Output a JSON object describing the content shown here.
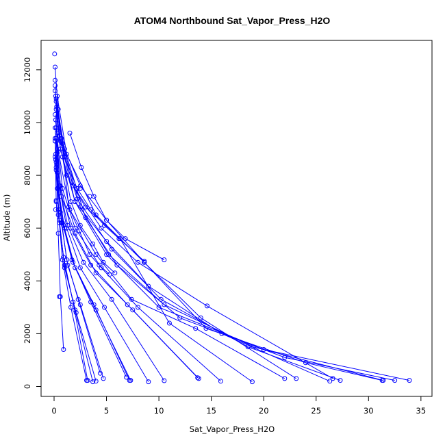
{
  "chart_data": {
    "type": "line",
    "title": "ATOM4 Northbound Sat_Vapor_Press_H2O",
    "xlabel": "Sat_Vapor_Press_H2O",
    "ylabel": "Altitude (m)",
    "xlim": [
      0,
      35
    ],
    "ylim": [
      0,
      12600
    ],
    "x_ticks": [
      0,
      5,
      10,
      15,
      20,
      25,
      30,
      35
    ],
    "y_ticks": [
      0,
      2000,
      4000,
      6000,
      8000,
      10000,
      12000
    ],
    "x_tick_labels": [
      "0",
      "5",
      "10",
      "15",
      "20",
      "25",
      "30",
      "35"
    ],
    "y_tick_labels": [
      "0",
      "2000",
      "4000",
      "6000",
      "8000",
      "10000",
      "12000"
    ],
    "grid": false,
    "legend": "none",
    "color": "#0000ff",
    "series": [
      {
        "x": [
          33.9,
          20.0,
          10.0,
          5.0,
          2.0,
          0.5,
          0.15
        ],
        "y": [
          230,
          1400,
          3000,
          5000,
          7000,
          9500,
          11000
        ]
      },
      {
        "x": [
          32.5,
          22.0,
          12.0,
          6.0,
          3.0,
          1.0,
          0.2
        ],
        "y": [
          230,
          1100,
          2600,
          4600,
          6400,
          9000,
          10800
        ]
      },
      {
        "x": [
          31.4,
          19.0,
          10.5,
          5.2,
          2.5,
          0.8,
          0.25
        ],
        "y": [
          230,
          1500,
          3100,
          5000,
          6800,
          9200,
          10600
        ]
      },
      {
        "x": [
          31.3,
          24.0,
          14.5,
          8.6,
          4.0,
          1.2,
          0.3
        ],
        "y": [
          230,
          900,
          2200,
          4700,
          6500,
          8800,
          11000
        ]
      },
      {
        "x": [
          27.3,
          18.5,
          10.2,
          5.5,
          2.2,
          0.6,
          0.1
        ],
        "y": [
          230,
          1500,
          3300,
          5200,
          7100,
          9300,
          12100
        ]
      },
      {
        "x": [
          26.6,
          14.6,
          8.0,
          4.5,
          1.8,
          0.5,
          0.1
        ],
        "y": [
          300,
          3050,
          4700,
          6000,
          7600,
          9500,
          11200
        ]
      },
      {
        "x": [
          26.3,
          16.0,
          9.0,
          5.0,
          2.0,
          0.6,
          0.2
        ],
        "y": [
          200,
          2000,
          3800,
          5500,
          7000,
          9000,
          10500
        ]
      },
      {
        "x": [
          23.1,
          14.0,
          8.6,
          5.0,
          2.5,
          0.8,
          0.2
        ],
        "y": [
          300,
          2600,
          4700,
          6300,
          7600,
          9200,
          10900
        ]
      },
      {
        "x": [
          22.0,
          13.5,
          7.4,
          4.0,
          1.5,
          0.4,
          0.1
        ],
        "y": [
          300,
          2200,
          3300,
          5000,
          6700,
          8900,
          10300
        ]
      },
      {
        "x": [
          18.9,
          11.0,
          6.3,
          3.0,
          1.2,
          0.3,
          0.1
        ],
        "y": [
          180,
          2400,
          5600,
          6800,
          8000,
          9600,
          11400
        ]
      },
      {
        "x": [
          15.9,
          8.0,
          4.5,
          2.0,
          0.8,
          0.2
        ],
        "y": [
          200,
          3000,
          4500,
          6000,
          7500,
          9800
        ]
      },
      {
        "x": [
          13.8,
          7.5,
          4.0,
          2.0,
          0.7,
          0.2
        ],
        "y": [
          300,
          2900,
          4300,
          5800,
          7200,
          9400
        ]
      },
      {
        "x": [
          13.7,
          7.0,
          3.5,
          1.6,
          0.6,
          0.15
        ],
        "y": [
          330,
          3100,
          4600,
          6000,
          7600,
          10100
        ]
      },
      {
        "x": [
          10.5,
          5.5,
          2.8,
          1.3,
          0.5,
          0.1
        ],
        "y": [
          220,
          3300,
          4700,
          6100,
          7600,
          9800
        ]
      },
      {
        "x": [
          9.0,
          4.8,
          2.5,
          1.2,
          0.5,
          0.1
        ],
        "y": [
          180,
          3000,
          4500,
          6000,
          7600,
          9300
        ]
      },
      {
        "x": [
          7.3,
          4.0,
          2.0,
          1.0,
          0.4,
          0.1
        ],
        "y": [
          230,
          2900,
          4500,
          6000,
          7500,
          9300
        ]
      },
      {
        "x": [
          7.2,
          3.8,
          1.8,
          0.9,
          0.3,
          0.1
        ],
        "y": [
          230,
          3100,
          4700,
          6100,
          7500,
          8700
        ]
      },
      {
        "x": [
          6.9,
          3.5,
          1.7,
          0.8,
          0.3
        ],
        "y": [
          350,
          3200,
          4800,
          6200,
          8100
        ]
      },
      {
        "x": [
          4.7,
          2.5,
          1.3,
          0.7,
          0.25
        ],
        "y": [
          300,
          3100,
          4600,
          6200,
          8400
        ]
      },
      {
        "x": [
          4.4,
          2.3,
          1.2,
          0.6,
          0.2
        ],
        "y": [
          500,
          3300,
          4800,
          6600,
          8300
        ]
      },
      {
        "x": [
          4.0,
          2.1,
          1.0,
          0.5,
          0.2
        ],
        "y": [
          200,
          2800,
          4500,
          6300,
          8200
        ]
      },
      {
        "x": [
          3.7,
          2.0,
          1.0,
          0.5,
          0.2
        ],
        "y": [
          180,
          2900,
          4600,
          6200,
          8500
        ]
      },
      {
        "x": [
          3.2,
          1.8,
          0.9,
          0.4,
          0.15
        ],
        "y": [
          230,
          3200,
          4900,
          6500,
          8600
        ]
      },
      {
        "x": [
          3.1,
          1.6,
          0.8,
          0.4,
          0.15
        ],
        "y": [
          230,
          3000,
          4800,
          6700,
          8800
        ]
      },
      {
        "x": [
          0.9,
          0.6,
          0.4,
          0.2,
          0.1
        ],
        "y": [
          1400,
          3400,
          5800,
          7000,
          9400
        ]
      },
      {
        "x": [
          8.6,
          6.2,
          4.8,
          3.5,
          2.2,
          1.0,
          0.4
        ],
        "y": [
          4750,
          5600,
          6100,
          6700,
          7500,
          8700,
          10500
        ]
      },
      {
        "x": [
          10.5,
          6.8,
          5.0,
          3.8,
          2.6,
          1.5
        ],
        "y": [
          4800,
          5600,
          6300,
          7200,
          8300,
          9600
        ]
      },
      {
        "x": [
          5.8,
          4.7,
          3.7,
          2.5,
          1.6,
          0.8
        ],
        "y": [
          4300,
          4700,
          5400,
          6100,
          7000,
          8700
        ]
      },
      {
        "x": [
          5.3,
          4.3,
          3.4,
          2.4,
          1.4,
          0.7
        ],
        "y": [
          4250,
          4600,
          5000,
          5900,
          6800,
          9400
        ]
      }
    ],
    "outlier_points": [
      {
        "x": 0.05,
        "y": 12600
      },
      {
        "x": 0.1,
        "y": 11600
      },
      {
        "x": 0.2,
        "y": 7050
      },
      {
        "x": 0.15,
        "y": 6700
      },
      {
        "x": 0.5,
        "y": 3400
      },
      {
        "x": 3.4,
        "y": 7200
      },
      {
        "x": 2.5,
        "y": 7500
      }
    ]
  }
}
